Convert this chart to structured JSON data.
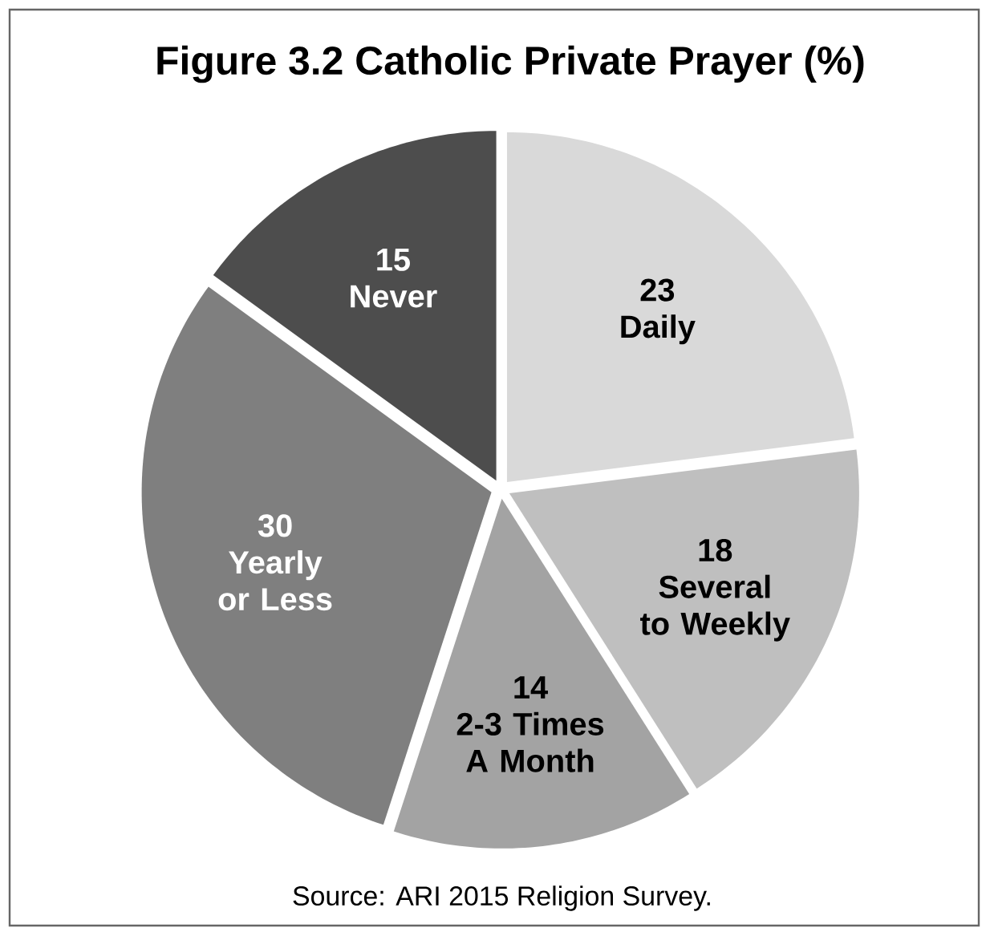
{
  "chart_data": {
    "type": "pie",
    "title": "Figure 3.2 Catholic Private Prayer (%)",
    "categories": [
      "Daily",
      "Several to Weekly",
      "2-3 Times A Month",
      "Yearly or Less",
      "Never"
    ],
    "values": [
      23,
      18,
      14,
      30,
      15
    ],
    "colors": [
      "#d9d9d9",
      "#bfbfbf",
      "#a3a3a3",
      "#7f7f7f",
      "#4d4d4d"
    ],
    "data_labels": true,
    "annotations": [
      "Source: ARI 2015 Religion Survey."
    ]
  }
}
